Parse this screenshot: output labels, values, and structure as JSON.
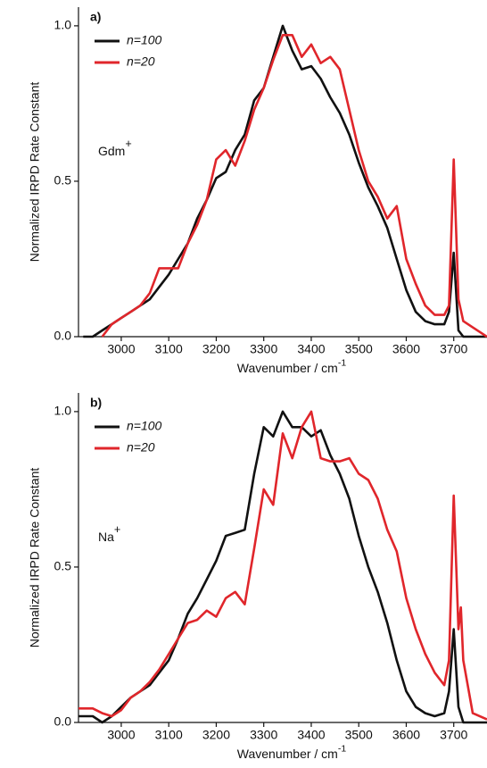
{
  "chart_data": [
    {
      "type": "line",
      "panel_label": "a)",
      "annotation": {
        "text": "Gdm",
        "sup": "+"
      },
      "xlabel": {
        "text": "Wavenumber / cm",
        "sup": "-1"
      },
      "ylabel": "Normalized IRPD Rate Constant",
      "xlim": [
        2910,
        3770
      ],
      "ylim": [
        0,
        1.06
      ],
      "xticks": [
        3000,
        3100,
        3200,
        3300,
        3400,
        3500,
        3600,
        3700
      ],
      "yticks": [
        {
          "value": 0,
          "label": "0.0"
        },
        {
          "value": 0.5,
          "label": "0.5"
        },
        {
          "value": 1,
          "label": "1.0"
        }
      ],
      "legend": "upper left",
      "grid": false,
      "series": [
        {
          "name": "n=100",
          "color": "#111111",
          "x": [
            2920,
            2940,
            2960,
            2980,
            3000,
            3020,
            3040,
            3060,
            3080,
            3100,
            3120,
            3140,
            3160,
            3180,
            3200,
            3220,
            3240,
            3260,
            3280,
            3300,
            3320,
            3340,
            3360,
            3380,
            3400,
            3420,
            3440,
            3460,
            3480,
            3500,
            3520,
            3540,
            3560,
            3580,
            3600,
            3620,
            3640,
            3660,
            3680,
            3690,
            3700,
            3710,
            3720,
            3770
          ],
          "values": [
            0,
            0,
            0.02,
            0.04,
            0.06,
            0.08,
            0.1,
            0.12,
            0.16,
            0.2,
            0.25,
            0.3,
            0.38,
            0.44,
            0.51,
            0.53,
            0.6,
            0.65,
            0.76,
            0.8,
            0.9,
            1.0,
            0.92,
            0.86,
            0.87,
            0.83,
            0.77,
            0.72,
            0.65,
            0.56,
            0.48,
            0.42,
            0.35,
            0.25,
            0.15,
            0.08,
            0.05,
            0.04,
            0.04,
            0.08,
            0.27,
            0.02,
            0,
            0
          ]
        },
        {
          "name": "n=20",
          "color": "#e0262b",
          "x": [
            2960,
            2980,
            3000,
            3020,
            3040,
            3060,
            3080,
            3100,
            3120,
            3140,
            3160,
            3180,
            3200,
            3220,
            3240,
            3260,
            3280,
            3300,
            3320,
            3340,
            3360,
            3380,
            3400,
            3420,
            3440,
            3460,
            3480,
            3500,
            3520,
            3540,
            3560,
            3580,
            3600,
            3620,
            3640,
            3660,
            3680,
            3690,
            3700,
            3710,
            3720,
            3740,
            3770
          ],
          "values": [
            0,
            0.04,
            0.06,
            0.08,
            0.1,
            0.14,
            0.22,
            0.22,
            0.22,
            0.3,
            0.36,
            0.44,
            0.57,
            0.6,
            0.55,
            0.63,
            0.73,
            0.8,
            0.89,
            0.97,
            0.97,
            0.9,
            0.94,
            0.88,
            0.9,
            0.86,
            0.73,
            0.6,
            0.5,
            0.45,
            0.38,
            0.42,
            0.25,
            0.17,
            0.1,
            0.07,
            0.07,
            0.1,
            0.57,
            0.12,
            0.05,
            0.03,
            0
          ]
        }
      ]
    },
    {
      "type": "line",
      "panel_label": "b)",
      "annotation": {
        "text": "Na",
        "sup": "+"
      },
      "xlabel": {
        "text": "Wavenumber / cm",
        "sup": "-1"
      },
      "ylabel": "Normalized IRPD Rate Constant",
      "xlim": [
        2910,
        3770
      ],
      "ylim": [
        0,
        1.06
      ],
      "xticks": [
        3000,
        3100,
        3200,
        3300,
        3400,
        3500,
        3600,
        3700
      ],
      "yticks": [
        {
          "value": 0,
          "label": "0.0"
        },
        {
          "value": 0.5,
          "label": "0.5"
        },
        {
          "value": 1,
          "label": "1.0"
        }
      ],
      "legend": "upper left",
      "grid": false,
      "series": [
        {
          "name": "n=100",
          "color": "#111111",
          "x": [
            2910,
            2940,
            2960,
            2980,
            3000,
            3020,
            3040,
            3060,
            3080,
            3100,
            3120,
            3140,
            3160,
            3180,
            3200,
            3220,
            3240,
            3260,
            3280,
            3300,
            3320,
            3340,
            3360,
            3380,
            3400,
            3420,
            3440,
            3460,
            3480,
            3500,
            3520,
            3540,
            3560,
            3580,
            3600,
            3620,
            3640,
            3660,
            3680,
            3690,
            3700,
            3710,
            3720,
            3770
          ],
          "values": [
            0.02,
            0.02,
            0,
            0.02,
            0.05,
            0.08,
            0.1,
            0.12,
            0.16,
            0.2,
            0.27,
            0.35,
            0.4,
            0.46,
            0.52,
            0.6,
            0.61,
            0.62,
            0.8,
            0.95,
            0.92,
            1.0,
            0.95,
            0.95,
            0.92,
            0.94,
            0.86,
            0.8,
            0.72,
            0.6,
            0.5,
            0.42,
            0.32,
            0.2,
            0.1,
            0.05,
            0.03,
            0.02,
            0.03,
            0.1,
            0.3,
            0.05,
            0,
            0
          ]
        },
        {
          "name": "n=20",
          "color": "#e0262b",
          "x": [
            2910,
            2940,
            2960,
            2980,
            3000,
            3020,
            3040,
            3060,
            3080,
            3100,
            3120,
            3140,
            3160,
            3180,
            3200,
            3220,
            3240,
            3260,
            3280,
            3300,
            3320,
            3340,
            3360,
            3380,
            3400,
            3420,
            3440,
            3460,
            3480,
            3500,
            3520,
            3540,
            3560,
            3580,
            3600,
            3620,
            3640,
            3660,
            3680,
            3690,
            3700,
            3710,
            3715,
            3720,
            3740,
            3770
          ],
          "values": [
            0.045,
            0.045,
            0.03,
            0.02,
            0.04,
            0.08,
            0.1,
            0.13,
            0.17,
            0.22,
            0.27,
            0.32,
            0.33,
            0.36,
            0.34,
            0.4,
            0.42,
            0.38,
            0.56,
            0.75,
            0.7,
            0.93,
            0.85,
            0.95,
            1.0,
            0.85,
            0.84,
            0.84,
            0.85,
            0.8,
            0.78,
            0.72,
            0.62,
            0.55,
            0.4,
            0.3,
            0.22,
            0.16,
            0.12,
            0.2,
            0.73,
            0.3,
            0.37,
            0.2,
            0.03,
            0.01
          ]
        }
      ]
    }
  ]
}
